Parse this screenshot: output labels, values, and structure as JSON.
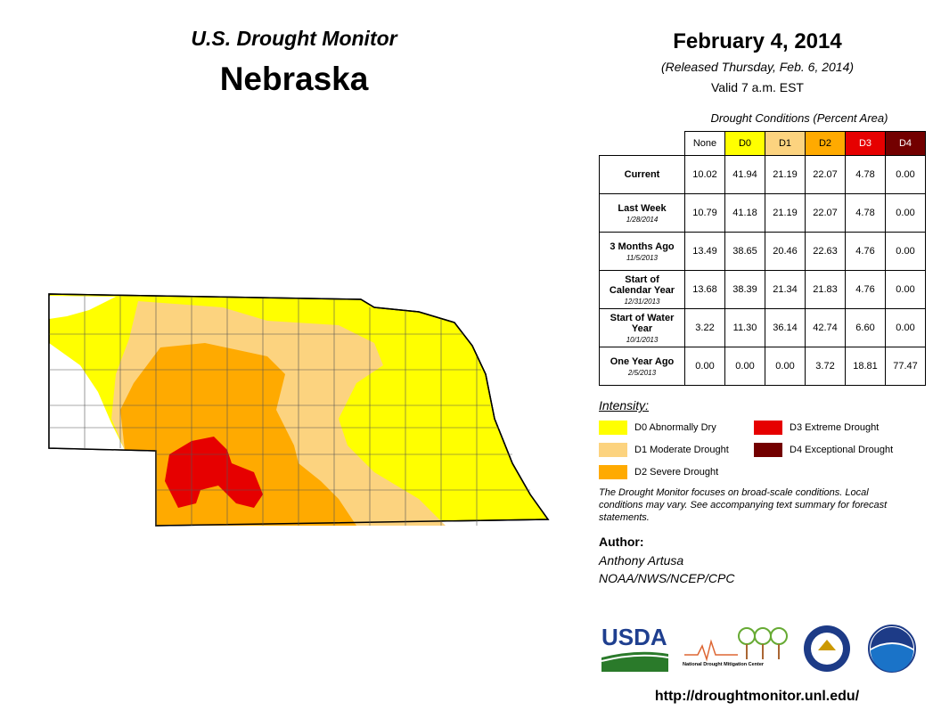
{
  "header": {
    "subtitle": "U.S. Drought Monitor",
    "title": "Nebraska",
    "date": "February 4, 2014",
    "released": "(Released Thursday, Feb. 6, 2014)",
    "valid": "Valid 7 a.m. EST"
  },
  "table": {
    "caption": "Drought Conditions (Percent Area)",
    "columns": [
      {
        "label": "None",
        "color": "#ffffff",
        "text": "#000000"
      },
      {
        "label": "D0",
        "color": "#ffff00",
        "text": "#000000"
      },
      {
        "label": "D1",
        "color": "#fcd37f",
        "text": "#000000"
      },
      {
        "label": "D2",
        "color": "#ffaa00",
        "text": "#000000"
      },
      {
        "label": "D3",
        "color": "#e60000",
        "text": "#ffffff"
      },
      {
        "label": "D4",
        "color": "#730000",
        "text": "#ffffff"
      }
    ],
    "rows": [
      {
        "label": "Current",
        "values": [
          "10.02",
          "41.94",
          "21.19",
          "22.07",
          "4.78",
          "0.00"
        ]
      },
      {
        "label": "Last Week",
        "date": "1/28/2014",
        "values": [
          "10.79",
          "41.18",
          "21.19",
          "22.07",
          "4.78",
          "0.00"
        ]
      },
      {
        "label": "3 Months Ago",
        "date": "11/5/2013",
        "values": [
          "13.49",
          "38.65",
          "20.46",
          "22.63",
          "4.76",
          "0.00"
        ]
      },
      {
        "label": "Start of Calendar Year",
        "date": "12/31/2013",
        "values": [
          "13.68",
          "38.39",
          "21.34",
          "21.83",
          "4.76",
          "0.00"
        ]
      },
      {
        "label": "Start of Water Year",
        "date": "10/1/2013",
        "values": [
          "3.22",
          "11.30",
          "36.14",
          "42.74",
          "6.60",
          "0.00"
        ]
      },
      {
        "label": "One Year Ago",
        "date": "2/5/2013",
        "values": [
          "0.00",
          "0.00",
          "0.00",
          "3.72",
          "18.81",
          "77.47"
        ]
      }
    ]
  },
  "legend": {
    "title": "Intensity:",
    "items": [
      {
        "label": "D0 Abnormally Dry",
        "color": "#ffff00"
      },
      {
        "label": "D1 Moderate Drought",
        "color": "#fcd37f"
      },
      {
        "label": "D2 Severe Drought",
        "color": "#ffaa00"
      },
      {
        "label": "D3 Extreme Drought",
        "color": "#e60000"
      },
      {
        "label": "D4 Exceptional Drought",
        "color": "#730000"
      }
    ]
  },
  "note": "The Drought Monitor focuses on broad-scale conditions. Local conditions may vary. See accompanying text summary for forecast statements.",
  "author": {
    "heading": "Author:",
    "name": "Anthony Artusa",
    "org": "NOAA/NWS/NCEP/CPC"
  },
  "logos": {
    "usda": "USDA",
    "ndmc": "National Drought Mitigation Center"
  },
  "url": "http://droughtmonitor.unl.edu/"
}
